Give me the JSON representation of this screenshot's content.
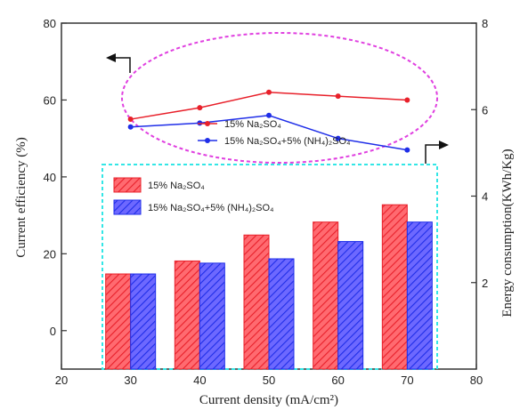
{
  "chart_data": {
    "type": "bar+line",
    "xlabel": "Current density (mA/cm²)",
    "ylabel_left": "Current efficiency (%)",
    "ylabel_right": "Energy consumption(KWh/Kg)",
    "xlim": [
      20,
      80
    ],
    "ylim_left": [
      -10,
      80
    ],
    "ylim_right": [
      0,
      8
    ],
    "xticks": [
      "20",
      "30",
      "40",
      "50",
      "60",
      "70",
      "80"
    ],
    "yticks_left": [
      "0",
      "20",
      "40",
      "60",
      "80"
    ],
    "yticks_right": [
      "2",
      "4",
      "6",
      "8"
    ],
    "line_series": [
      {
        "name": "15% Na₂SO₄",
        "color": "#e8202a",
        "axis": "left",
        "x": [
          30,
          40,
          50,
          60,
          70
        ],
        "values": [
          55,
          58,
          62,
          61,
          60
        ]
      },
      {
        "name": "15% Na₂SO₄+5% (NH₄)₂SO₄",
        "color": "#1f2ee8",
        "axis": "left",
        "x": [
          30,
          40,
          50,
          60,
          70
        ],
        "values": [
          53,
          54,
          56,
          50,
          47
        ]
      }
    ],
    "bar_series": [
      {
        "name": "15% Na₂SO₄",
        "color": "#ff4d55",
        "axis": "right",
        "x": [
          30,
          40,
          50,
          60,
          70
        ],
        "values": [
          2.2,
          2.5,
          3.1,
          3.4,
          3.8
        ]
      },
      {
        "name": "15% Na₂SO₄+5% (NH₄)₂SO₄",
        "color": "#4c45ff",
        "axis": "right",
        "x": [
          30,
          40,
          50,
          60,
          70
        ],
        "values": [
          2.2,
          2.45,
          2.55,
          2.95,
          3.4
        ]
      }
    ],
    "annotations": {
      "ellipse_color": "#e040e0",
      "box_color": "#33e6e6",
      "left_arrow": "points to left axis",
      "right_arrow": "points to right axis"
    }
  }
}
